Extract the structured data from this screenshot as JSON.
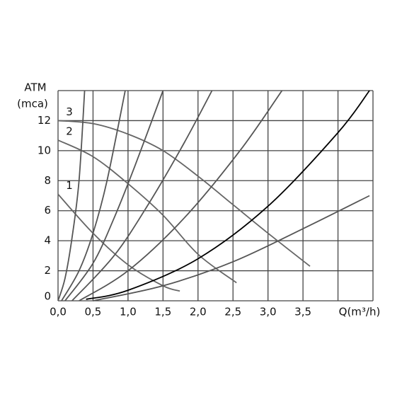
{
  "chart_data": {
    "type": "line",
    "y_label_line1": "ATM",
    "y_label_line2": "(mca)",
    "x_label": "Q(m³/h)",
    "xlim": [
      0,
      4.5
    ],
    "ylim": [
      0,
      14
    ],
    "xticks": [
      {
        "value": 0,
        "label": "0,0"
      },
      {
        "value": 0.5,
        "label": "0,5"
      },
      {
        "value": 1,
        "label": "1,0"
      },
      {
        "value": 1.5,
        "label": "1,5"
      },
      {
        "value": 2,
        "label": "2,0"
      },
      {
        "value": 2.5,
        "label": "2,5"
      },
      {
        "value": 3,
        "label": "3,0"
      },
      {
        "value": 3.5,
        "label": "3,5"
      }
    ],
    "xgrid": [
      4
    ],
    "yticks": [
      0,
      2,
      4,
      6,
      8,
      10,
      12
    ],
    "grid": true,
    "series": [
      {
        "name": "3",
        "color": "#666666",
        "x": [
          0,
          0.5,
          1,
          1.5,
          2,
          2.5,
          3,
          3.6
        ],
        "values": [
          12,
          11.8,
          11.1,
          10,
          8.3,
          6.4,
          4.5,
          2.3
        ]
      },
      {
        "name": "2",
        "color": "#666666",
        "x": [
          0,
          0.5,
          1,
          1.5,
          2,
          2.55
        ],
        "values": [
          10.7,
          9.6,
          7.8,
          5.7,
          3.1,
          1.2
        ]
      },
      {
        "name": "1",
        "color": "#666666",
        "x": [
          0,
          0.5,
          1,
          1.5,
          1.74
        ],
        "values": [
          7.1,
          4.5,
          2.4,
          1,
          0.65
        ]
      },
      {
        "color": "#555555",
        "x": [
          0,
          0.1,
          0.2,
          0.3,
          0.38
        ],
        "values": [
          0,
          1.5,
          4.2,
          8,
          14
        ]
      },
      {
        "color": "#555555",
        "x": [
          0.05,
          0.3,
          0.5,
          0.7,
          0.96
        ],
        "values": [
          0,
          2,
          4.5,
          8,
          14
        ]
      },
      {
        "color": "#555555",
        "x": [
          0.1,
          0.5,
          0.8,
          1.1,
          1.5
        ],
        "values": [
          0,
          2.5,
          5.5,
          9,
          14
        ]
      },
      {
        "color": "#555555",
        "x": [
          0.2,
          0.8,
          1.3,
          1.8,
          2.2
        ],
        "values": [
          0,
          3,
          6.5,
          10.5,
          14
        ]
      },
      {
        "color": "#555555",
        "x": [
          0.3,
          1,
          1.8,
          2.6,
          3.2
        ],
        "values": [
          0,
          2,
          5.5,
          10,
          14
        ]
      },
      {
        "color": "#555555",
        "x": [
          0.5,
          1.5,
          2.5,
          3.5,
          4.45
        ],
        "values": [
          0,
          1,
          2.6,
          4.8,
          7
        ]
      },
      {
        "color": "#000000",
        "x": [
          0.4,
          1,
          2,
          3,
          4,
          4.45
        ],
        "values": [
          0.1,
          0.7,
          2.8,
          6.3,
          11.2,
          14
        ]
      }
    ]
  }
}
